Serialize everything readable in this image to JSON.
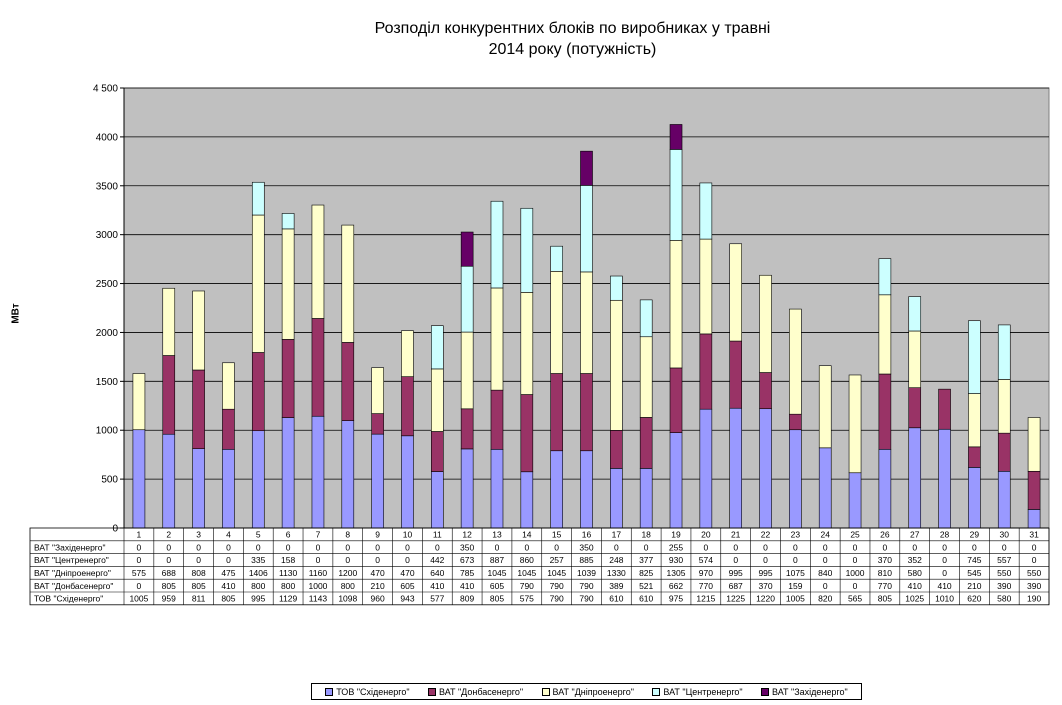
{
  "chart_data": {
    "type": "bar",
    "stacked": true,
    "title_line1": "Розподіл конкурентних  блоків по виробниках у травні",
    "title_line2": "2014 року  (потужність)",
    "ylabel": "МВт",
    "ylim": [
      0,
      4500
    ],
    "yticks": [
      0,
      500,
      1000,
      1500,
      2000,
      2500,
      3000,
      3500,
      4000,
      4500
    ],
    "ytick_labels": [
      "0",
      "500",
      "1000",
      "1500",
      "2000",
      "2500",
      "3000",
      "3500",
      "4000",
      "4 500"
    ],
    "grid": true,
    "legend_position": "bottom",
    "categories": [
      "1",
      "2",
      "3",
      "4",
      "5",
      "6",
      "7",
      "8",
      "9",
      "10",
      "11",
      "12",
      "13",
      "14",
      "15",
      "16",
      "17",
      "18",
      "19",
      "20",
      "21",
      "22",
      "23",
      "24",
      "25",
      "26",
      "27",
      "28",
      "29",
      "30",
      "31"
    ],
    "series": [
      {
        "name": "ТОВ \"Східенерго\"",
        "color": "#9999FF",
        "values": [
          1005,
          959,
          811,
          805,
          995,
          1129,
          1143,
          1098,
          960,
          943,
          577,
          809,
          805,
          575,
          790,
          790,
          610,
          610,
          975,
          1215,
          1225,
          1220,
          1005,
          820,
          565,
          805,
          1025,
          1010,
          620,
          580,
          190
        ]
      },
      {
        "name": "ВАТ \"Донбасенерго\"",
        "color": "#993366",
        "values": [
          0,
          805,
          805,
          410,
          800,
          800,
          1000,
          800,
          210,
          605,
          410,
          410,
          605,
          790,
          790,
          790,
          389,
          521,
          662,
          770,
          687,
          370,
          159,
          0,
          0,
          770,
          410,
          410,
          210,
          390,
          390
        ]
      },
      {
        "name": "ВАТ \"Дніпроенерго\"",
        "color": "#FFFFCC",
        "values": [
          575,
          688,
          808,
          475,
          1406,
          1130,
          1160,
          1200,
          470,
          470,
          640,
          785,
          1045,
          1045,
          1045,
          1039,
          1330,
          825,
          1305,
          970,
          995,
          995,
          1075,
          840,
          1000,
          810,
          580,
          0,
          545,
          550,
          550
        ]
      },
      {
        "name": "ВАТ \"Центренерго\"",
        "color": "#CCFFFF",
        "values": [
          0,
          0,
          0,
          0,
          335,
          158,
          0,
          0,
          0,
          0,
          442,
          673,
          887,
          860,
          257,
          885,
          248,
          377,
          930,
          574,
          0,
          0,
          0,
          0,
          0,
          370,
          352,
          0,
          745,
          557,
          0
        ]
      },
      {
        "name": "ВАТ \"Західенерго\"",
        "color": "#660066",
        "values": [
          0,
          0,
          0,
          0,
          0,
          0,
          0,
          0,
          0,
          0,
          0,
          350,
          0,
          0,
          0,
          350,
          0,
          0,
          255,
          0,
          0,
          0,
          0,
          0,
          0,
          0,
          0,
          0,
          0,
          0,
          0
        ]
      }
    ],
    "table_row_order": [
      4,
      3,
      2,
      1,
      0
    ]
  },
  "colors": {
    "plot_background": "#C0C0C0",
    "gridline": "#000000"
  }
}
